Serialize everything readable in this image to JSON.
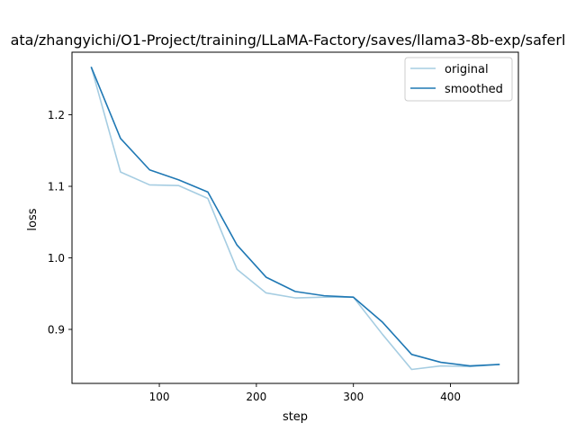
{
  "chart_data": {
    "type": "line",
    "title": "ata/zhangyichi/O1-Project/training/LLaMA-Factory/saves/llama3-8b-exp/saferl",
    "xlabel": "step",
    "ylabel": "loss",
    "xlim": [
      10,
      470
    ],
    "ylim": [
      0.8245,
      1.2875
    ],
    "xticks": [
      100,
      200,
      300,
      400
    ],
    "yticks": [
      0.9,
      1.0,
      1.1,
      1.2
    ],
    "xtick_labels": [
      "100",
      "200",
      "300",
      "400"
    ],
    "ytick_labels": [
      "0.9",
      "1.0",
      "1.1",
      "1.2"
    ],
    "grid": false,
    "legend_position": "top-right",
    "series": [
      {
        "name": "original",
        "color": "#a6cde2",
        "x": [
          30,
          60,
          90,
          120,
          150,
          180,
          210,
          240,
          270,
          300,
          330,
          360,
          390,
          420,
          450
        ],
        "y": [
          1.266,
          1.12,
          1.102,
          1.101,
          1.083,
          0.984,
          0.951,
          0.944,
          0.945,
          0.945,
          0.893,
          0.844,
          0.849,
          0.848,
          0.851
        ]
      },
      {
        "name": "smoothed",
        "color": "#1f78b4",
        "x": [
          30,
          60,
          90,
          120,
          150,
          180,
          210,
          240,
          270,
          300,
          330,
          360,
          390,
          420,
          450
        ],
        "y": [
          1.266,
          1.167,
          1.123,
          1.109,
          1.092,
          1.018,
          0.973,
          0.953,
          0.947,
          0.945,
          0.91,
          0.865,
          0.854,
          0.849,
          0.851
        ]
      }
    ]
  }
}
